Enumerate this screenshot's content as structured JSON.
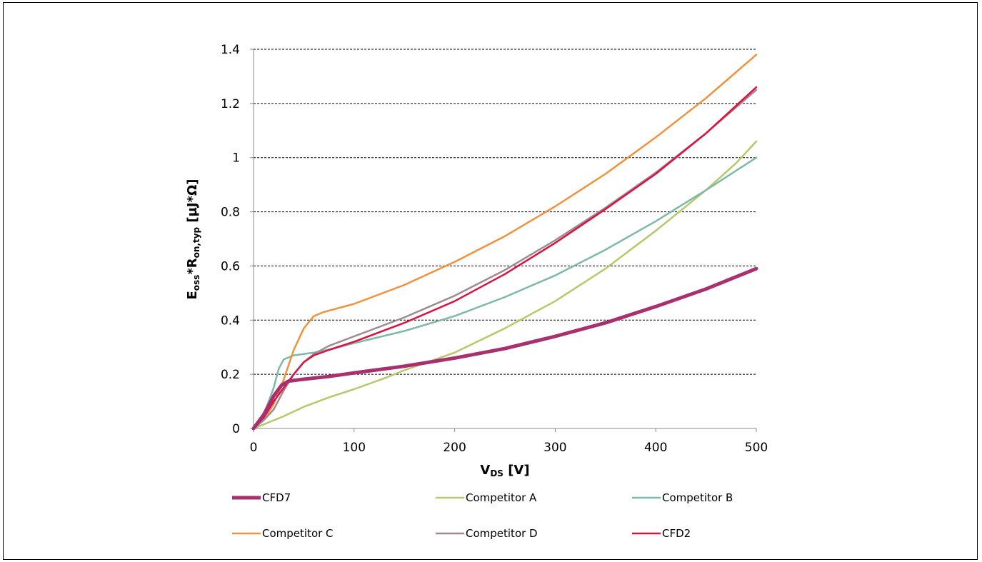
{
  "chart_data": {
    "type": "line",
    "title": "",
    "xlabel": {
      "main": "V",
      "sub": "DS",
      "rest": " [V]"
    },
    "ylabel": {
      "e": "E",
      "e_sub": "oss",
      "mid": "*R",
      "r_sub": "on,typ",
      "rest": " [µJ*Ω]"
    },
    "xlim": [
      0,
      500
    ],
    "ylim": [
      0,
      1.4
    ],
    "xticks": [
      0,
      100,
      200,
      300,
      400,
      500
    ],
    "yticks": [
      0,
      0.2,
      0.4,
      0.6,
      0.8,
      1,
      1.2,
      1.4
    ],
    "xtick_labels": [
      "0",
      "100",
      "200",
      "300",
      "400",
      "500"
    ],
    "ytick_labels": [
      "0",
      "0.2",
      "0.4",
      "0.6",
      "0.8",
      "1",
      "1.2",
      "1.4"
    ],
    "grid": "horizontal",
    "legend_position": "bottom",
    "series": [
      {
        "name": "CFD7",
        "color": "#a8306e",
        "width": 5,
        "points": [
          [
            0,
            0
          ],
          [
            10,
            0.05
          ],
          [
            20,
            0.12
          ],
          [
            28,
            0.16
          ],
          [
            35,
            0.175
          ],
          [
            50,
            0.182
          ],
          [
            75,
            0.192
          ],
          [
            100,
            0.205
          ],
          [
            150,
            0.23
          ],
          [
            200,
            0.26
          ],
          [
            250,
            0.295
          ],
          [
            300,
            0.34
          ],
          [
            350,
            0.39
          ],
          [
            400,
            0.45
          ],
          [
            450,
            0.515
          ],
          [
            500,
            0.59
          ]
        ]
      },
      {
        "name": "Competitor A",
        "color": "#b6c96a",
        "width": 2.5,
        "points": [
          [
            0,
            0
          ],
          [
            10,
            0.015
          ],
          [
            30,
            0.045
          ],
          [
            50,
            0.08
          ],
          [
            75,
            0.115
          ],
          [
            100,
            0.145
          ],
          [
            130,
            0.185
          ],
          [
            150,
            0.215
          ],
          [
            200,
            0.28
          ],
          [
            250,
            0.37
          ],
          [
            300,
            0.47
          ],
          [
            350,
            0.59
          ],
          [
            400,
            0.73
          ],
          [
            450,
            0.88
          ],
          [
            480,
            0.98
          ],
          [
            500,
            1.06
          ]
        ]
      },
      {
        "name": "Competitor B",
        "color": "#7fb8aa",
        "width": 2.5,
        "points": [
          [
            0,
            0
          ],
          [
            10,
            0.05
          ],
          [
            20,
            0.15
          ],
          [
            25,
            0.22
          ],
          [
            30,
            0.255
          ],
          [
            40,
            0.27
          ],
          [
            60,
            0.28
          ],
          [
            80,
            0.295
          ],
          [
            100,
            0.315
          ],
          [
            150,
            0.36
          ],
          [
            200,
            0.415
          ],
          [
            250,
            0.485
          ],
          [
            300,
            0.565
          ],
          [
            350,
            0.66
          ],
          [
            400,
            0.765
          ],
          [
            450,
            0.88
          ],
          [
            500,
            1.0
          ]
        ]
      },
      {
        "name": "Competitor C",
        "color": "#f0913d",
        "width": 2.5,
        "points": [
          [
            0,
            0
          ],
          [
            10,
            0.03
          ],
          [
            20,
            0.09
          ],
          [
            30,
            0.18
          ],
          [
            40,
            0.29
          ],
          [
            50,
            0.37
          ],
          [
            60,
            0.415
          ],
          [
            70,
            0.43
          ],
          [
            100,
            0.46
          ],
          [
            150,
            0.53
          ],
          [
            200,
            0.615
          ],
          [
            250,
            0.71
          ],
          [
            300,
            0.82
          ],
          [
            350,
            0.94
          ],
          [
            400,
            1.075
          ],
          [
            450,
            1.22
          ],
          [
            500,
            1.38
          ]
        ]
      },
      {
        "name": "Competitor D",
        "color": "#9e8a94",
        "width": 2.5,
        "points": [
          [
            0,
            0
          ],
          [
            10,
            0.03
          ],
          [
            20,
            0.07
          ],
          [
            30,
            0.14
          ],
          [
            40,
            0.2
          ],
          [
            50,
            0.245
          ],
          [
            60,
            0.275
          ],
          [
            75,
            0.305
          ],
          [
            100,
            0.34
          ],
          [
            150,
            0.41
          ],
          [
            200,
            0.49
          ],
          [
            250,
            0.585
          ],
          [
            300,
            0.695
          ],
          [
            350,
            0.815
          ],
          [
            400,
            0.945
          ],
          [
            450,
            1.09
          ],
          [
            500,
            1.25
          ]
        ]
      },
      {
        "name": "CFD2",
        "color": "#d8133f",
        "width": 2.5,
        "points": [
          [
            0,
            0
          ],
          [
            10,
            0.04
          ],
          [
            20,
            0.1
          ],
          [
            30,
            0.15
          ],
          [
            40,
            0.2
          ],
          [
            50,
            0.245
          ],
          [
            60,
            0.27
          ],
          [
            75,
            0.29
          ],
          [
            100,
            0.32
          ],
          [
            150,
            0.39
          ],
          [
            200,
            0.47
          ],
          [
            250,
            0.57
          ],
          [
            300,
            0.685
          ],
          [
            350,
            0.81
          ],
          [
            400,
            0.94
          ],
          [
            450,
            1.09
          ],
          [
            500,
            1.26
          ]
        ]
      }
    ]
  }
}
